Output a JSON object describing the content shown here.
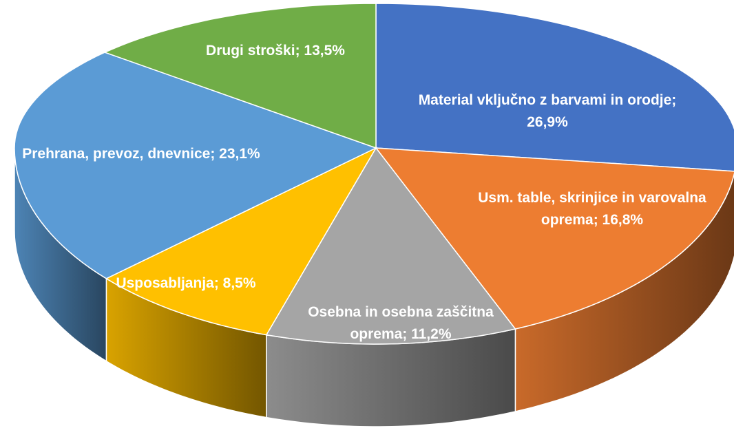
{
  "chart_data": {
    "type": "pie3d",
    "labels": [
      "Material vključno z barvami in orodje; 26,9%",
      "Usm. table, skrinjice in varovalna oprema; 16,8%",
      "Osebna in osebna zaščitna oprema; 11,2%",
      "Usposabljanja; 8,5%",
      "Prehrana, prevoz, dnevnice; 23,1%",
      "Drugi stroški; 13,5%"
    ],
    "values": [
      26.9,
      16.8,
      11.2,
      8.5,
      23.1,
      13.5
    ],
    "colors": [
      "#4472c4",
      "#ed7d31",
      "#a5a5a5",
      "#ffc000",
      "#5b9bd5",
      "#70ad47"
    ]
  }
}
